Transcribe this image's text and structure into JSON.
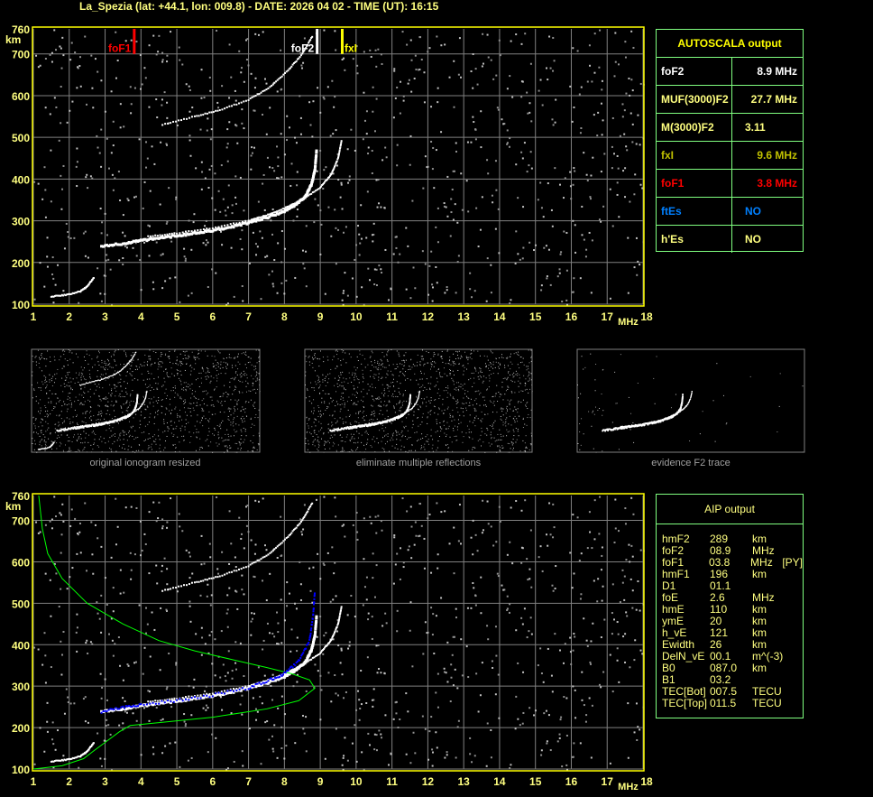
{
  "title": "La_Spezia (lat: +44.1, lon: 009.8) - DATE: 2026 04 02 - TIME (UT): 16:15",
  "colors": {
    "axis": "#ffff00",
    "grid": "#808080",
    "trace": "#ffffff",
    "foF1": "#ff0000",
    "fxI": "#ffff00",
    "profile": "#00ff00",
    "aip_trace": "#0000ff",
    "table_border": "#80ff80"
  },
  "chart_data": {
    "type": "scatter",
    "xlabel": "MHz",
    "ylabel": "km",
    "xlim": [
      1,
      18
    ],
    "ylim": [
      100,
      760
    ],
    "xticks": [
      "1",
      "2",
      "3",
      "4",
      "5",
      "6",
      "7",
      "8",
      "9",
      "10",
      "11",
      "12",
      "13",
      "14",
      "15",
      "16",
      "17",
      "18"
    ],
    "yticks": [
      "100",
      "200",
      "300",
      "400",
      "500",
      "600",
      "700",
      "760"
    ],
    "grid": true,
    "markers": [
      {
        "label": "foF1",
        "freq": 3.8,
        "color": "#ff0000"
      },
      {
        "label": "foF2",
        "freq": 8.9,
        "color": "#ffffff"
      },
      {
        "label": "fxI",
        "freq": 9.6,
        "color": "#ffff00"
      }
    ],
    "traces": {
      "o_mode_F": [
        [
          2.9,
          238
        ],
        [
          3.5,
          245
        ],
        [
          4,
          252
        ],
        [
          4.5,
          258
        ],
        [
          5,
          264
        ],
        [
          5.5,
          270
        ],
        [
          6,
          277
        ],
        [
          6.5,
          285
        ],
        [
          7,
          295
        ],
        [
          7.5,
          307
        ],
        [
          8,
          323
        ],
        [
          8.3,
          338
        ],
        [
          8.6,
          360
        ],
        [
          8.75,
          385
        ],
        [
          8.85,
          420
        ],
        [
          8.9,
          470
        ]
      ],
      "x_mode_F": [
        [
          4.2,
          262
        ],
        [
          5,
          270
        ],
        [
          6,
          283
        ],
        [
          7,
          300
        ],
        [
          7.5,
          313
        ],
        [
          8,
          330
        ],
        [
          8.5,
          350
        ],
        [
          9,
          380
        ],
        [
          9.3,
          410
        ],
        [
          9.5,
          450
        ],
        [
          9.6,
          495
        ]
      ],
      "o_mode_F_2hop": [
        [
          4.6,
          530
        ],
        [
          5.5,
          550
        ],
        [
          6.2,
          565
        ],
        [
          7,
          590
        ],
        [
          7.6,
          620
        ],
        [
          8.1,
          660
        ],
        [
          8.5,
          700
        ],
        [
          8.8,
          745
        ]
      ],
      "E_layer": [
        [
          1.5,
          118
        ],
        [
          1.9,
          122
        ],
        [
          2.3,
          130
        ],
        [
          2.5,
          142
        ],
        [
          2.7,
          165
        ]
      ],
      "aip_profile": [
        [
          1,
          100
        ],
        [
          1.8,
          108
        ],
        [
          2.4,
          125
        ],
        [
          2.7,
          145
        ],
        [
          3.4,
          190
        ],
        [
          3.7,
          205
        ],
        [
          4.5,
          212
        ],
        [
          6,
          225
        ],
        [
          7.5,
          245
        ],
        [
          8.4,
          265
        ],
        [
          8.85,
          295
        ],
        [
          8.7,
          315
        ],
        [
          8.2,
          330
        ],
        [
          7.5,
          345
        ],
        [
          6.5,
          365
        ],
        [
          5.5,
          385
        ],
        [
          4.5,
          410
        ],
        [
          3.5,
          450
        ],
        [
          2.5,
          500
        ],
        [
          1.8,
          560
        ],
        [
          1.4,
          620
        ],
        [
          1.25,
          680
        ],
        [
          1.15,
          760
        ]
      ],
      "aip_trace": [
        [
          2.9,
          238
        ],
        [
          3.5,
          248
        ],
        [
          4,
          256
        ],
        [
          5,
          265
        ],
        [
          6,
          278
        ],
        [
          7,
          296
        ],
        [
          7.6,
          315
        ],
        [
          8,
          330
        ],
        [
          8.4,
          360
        ],
        [
          8.7,
          410
        ],
        [
          8.8,
          470
        ],
        [
          8.85,
          530
        ]
      ]
    }
  },
  "thumbnails": [
    "original ionogram resized",
    "eliminate multiple reflections",
    "evidence F2 trace"
  ],
  "autoscala": {
    "header": "AUTOSCALA output",
    "rows": [
      {
        "key": "foF2",
        "value": "8.9 MHz",
        "color": "#ffffff"
      },
      {
        "key": "MUF(3000)F2",
        "value": "27.7 MHz",
        "color": "#ffff80"
      },
      {
        "key": "M(3000)F2",
        "value": "3.11",
        "color": "#ffff80"
      },
      {
        "key": "fxI",
        "value": "9.6 MHz",
        "color": "#c0c000"
      },
      {
        "key": "foF1",
        "value": "3.8 MHz",
        "color": "#ff0000"
      },
      {
        "key": "ftEs",
        "value": "NO",
        "color": "#0080ff"
      },
      {
        "key": "h'Es",
        "value": "NO",
        "color": "#ffff80"
      }
    ]
  },
  "aip": {
    "header": "AIP output",
    "rows": [
      [
        "hmF2",
        "289",
        "km",
        ""
      ],
      [
        "foF2",
        "08.9",
        "MHz",
        ""
      ],
      [
        "foF1",
        "03.8",
        "MHz",
        "[PY]"
      ],
      [
        "hmF1",
        "196",
        "km",
        ""
      ],
      [
        "D1",
        "01.1",
        "",
        ""
      ],
      [
        "foE",
        "2.6",
        "MHz",
        ""
      ],
      [
        "hmE",
        "110",
        "km",
        ""
      ],
      [
        "ymE",
        "20",
        "km",
        ""
      ],
      [
        "h_vE",
        "121",
        "km",
        ""
      ],
      [
        "Ewidth",
        "26",
        "km",
        ""
      ],
      [
        "DelN_vE",
        "00.1",
        "m^(-3)",
        ""
      ],
      [
        "B0",
        "087.0",
        "km",
        ""
      ],
      [
        "B1",
        "03.2",
        "",
        ""
      ],
      [
        "TEC[Bot]",
        "007.5",
        "TECU",
        ""
      ],
      [
        "TEC[Top]",
        "011.5",
        "TECU",
        ""
      ]
    ]
  }
}
